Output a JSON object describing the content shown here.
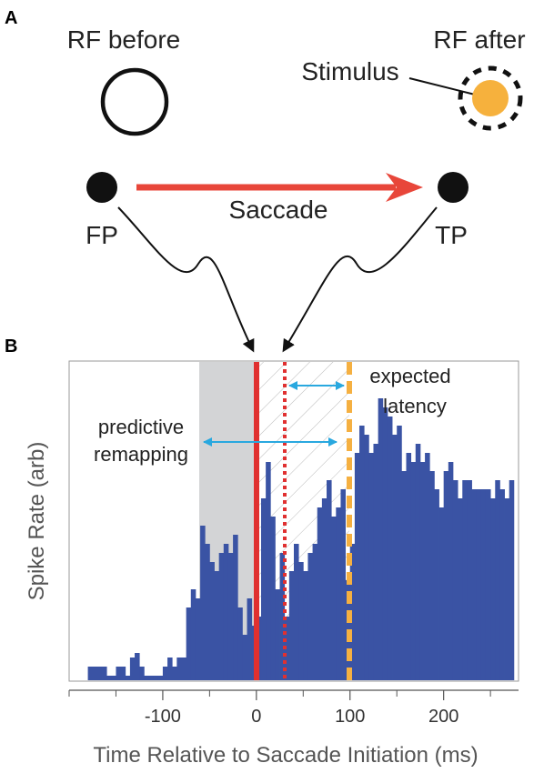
{
  "panel_a": {
    "letter": "A",
    "rf_before_label": "RF before",
    "rf_after_label": "RF after",
    "stimulus_label": "Stimulus",
    "saccade_label": "Saccade",
    "fp_label": "FP",
    "tp_label": "TP"
  },
  "panel_b": {
    "letter": "B",
    "annotation_predictive": [
      "predictive",
      "remapping"
    ],
    "annotation_expected": [
      "expected",
      "latency"
    ]
  },
  "colors": {
    "bars": "#3a53a4",
    "saccade_line": "#e03030",
    "expected_line": "#f5b041",
    "stimulus": "#f6b13d",
    "arrow_cyan": "#29a8df",
    "gray_region": "#d3d4d6"
  },
  "chart_data": {
    "type": "bar",
    "xlabel": "Time Relative to Saccade Initiation (ms)",
    "ylabel": "Spike Rate (arb)",
    "xlim": [
      -200,
      280
    ],
    "ylim": [
      0,
      35
    ],
    "x_ticks": [
      -100,
      0,
      100,
      200
    ],
    "x_tick_labels": [
      "-100",
      "0",
      "100",
      "200"
    ],
    "bin_width": 5,
    "bin_starts": [
      -180,
      -175,
      -170,
      -165,
      -160,
      -155,
      -150,
      -145,
      -140,
      -135,
      -130,
      -125,
      -120,
      -115,
      -110,
      -105,
      -100,
      -95,
      -90,
      -85,
      -80,
      -75,
      -70,
      -65,
      -60,
      -55,
      -50,
      -45,
      -40,
      -35,
      -30,
      -25,
      -20,
      -15,
      -10,
      -5,
      0,
      5,
      10,
      15,
      20,
      25,
      30,
      35,
      40,
      45,
      50,
      55,
      60,
      65,
      70,
      75,
      80,
      85,
      90,
      95,
      100,
      105,
      110,
      115,
      120,
      125,
      130,
      135,
      140,
      145,
      150,
      155,
      160,
      165,
      170,
      175,
      180,
      185,
      190,
      195,
      200,
      205,
      210,
      215,
      220,
      225,
      230,
      235,
      240,
      245,
      250,
      255,
      260,
      265,
      270
    ],
    "values": [
      1.5,
      1.5,
      1.5,
      1.5,
      0.5,
      0.5,
      1.5,
      1.5,
      0.5,
      2.5,
      3,
      1.5,
      0.5,
      0.5,
      0.5,
      0.5,
      1.5,
      2.5,
      1.5,
      2.5,
      2.5,
      8,
      10,
      9,
      17,
      15,
      13,
      12,
      14,
      15,
      14,
      16,
      8,
      5,
      9,
      6,
      7,
      20,
      24,
      18,
      10,
      14,
      7,
      12,
      15,
      13,
      12,
      14,
      15,
      19,
      20,
      22,
      18,
      19,
      21,
      11,
      15,
      25,
      28,
      27,
      25,
      26,
      31,
      30,
      29,
      27,
      28,
      23,
      25,
      24,
      26,
      24,
      25,
      23,
      21,
      19,
      23,
      24,
      22,
      20,
      22,
      22,
      21,
      21,
      21,
      21,
      20,
      22,
      21,
      20,
      22
    ]
  }
}
